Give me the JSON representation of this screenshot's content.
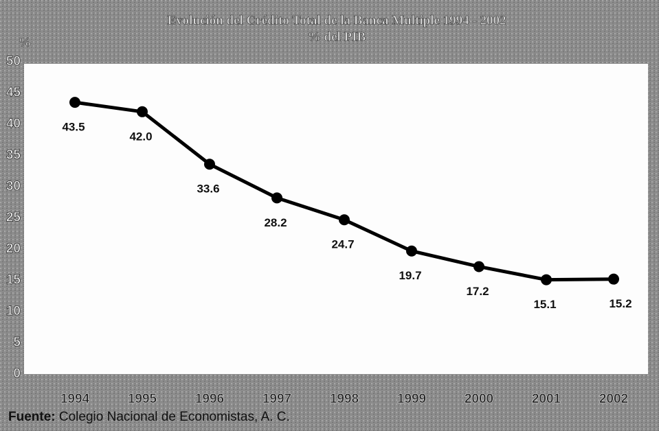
{
  "chart_data": {
    "type": "line",
    "title": "Evolución del Crédito Total de la Banca Multiple 1994 - 2002",
    "subtitle": "% del PIB",
    "y_label": "%",
    "categories": [
      "1994",
      "1995",
      "1996",
      "1997",
      "1998",
      "1999",
      "2000",
      "2001",
      "2002"
    ],
    "values": [
      43.5,
      42.0,
      33.6,
      28.2,
      24.7,
      19.7,
      17.2,
      15.1,
      15.2
    ],
    "value_labels": [
      "43.5",
      "42.0",
      "33.6",
      "28.2",
      "24.7",
      "19.7",
      "17.2",
      "15.1",
      "15.2"
    ],
    "color": "#000000",
    "ylim": [
      0,
      50
    ],
    "yticks": [
      0,
      5,
      10,
      15,
      20,
      25,
      30,
      35,
      40,
      45,
      50
    ],
    "grid": false,
    "source_label": "Fuente:",
    "source": "Colegio Nacional de Economistas, A. C."
  }
}
